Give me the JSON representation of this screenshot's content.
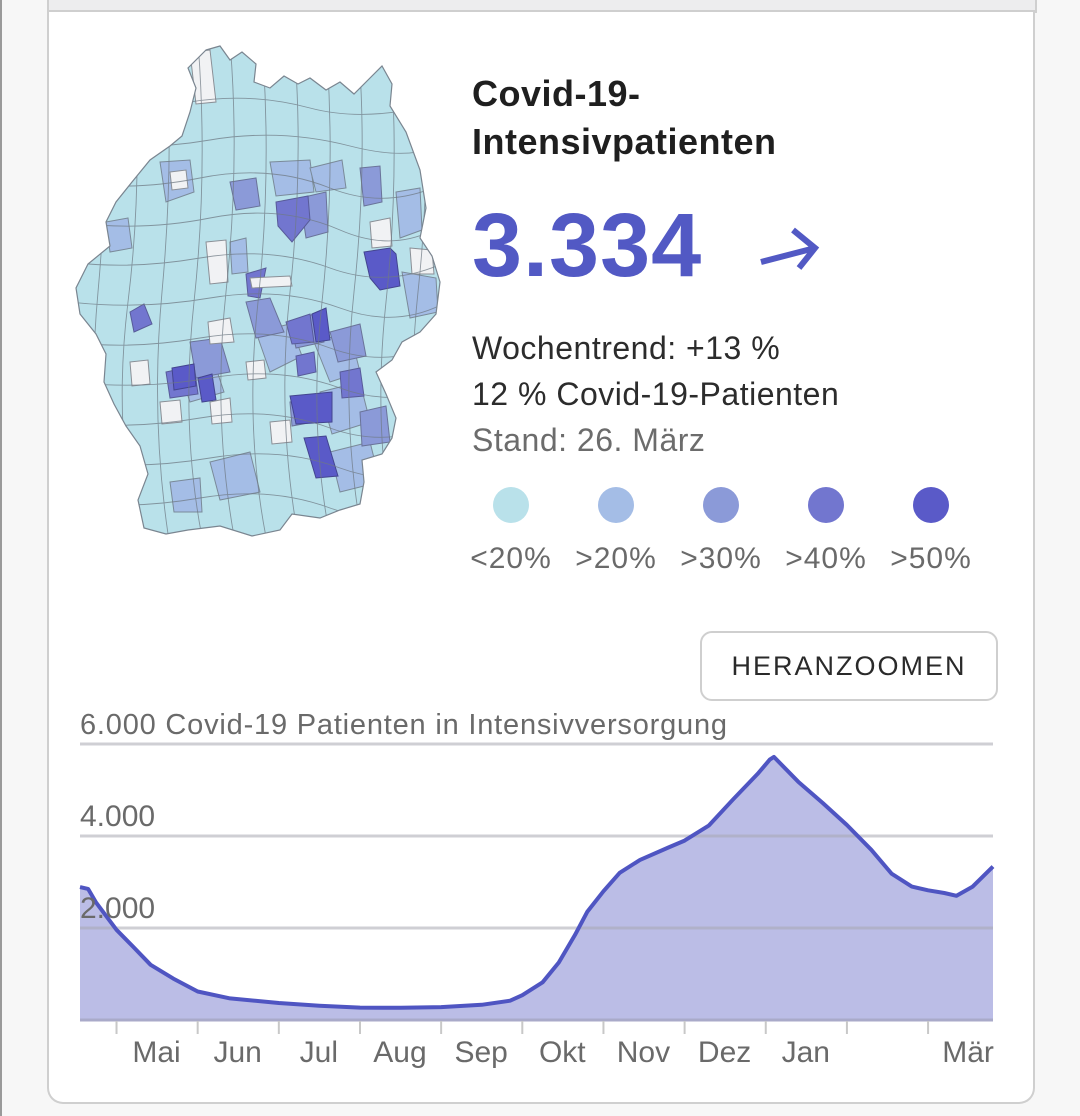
{
  "header": {
    "title": "Covid-19-\nIntensivpatienten",
    "title_line1": "Covid-19-",
    "title_line2": "Intensivpatienten",
    "value": "3.334",
    "trend_icon": "arrow-up-right-icon"
  },
  "stats": {
    "weekly_trend": "Wochentrend: +13 %",
    "share": "12 % Covid-19-Patienten",
    "as_of": "Stand: 26. März"
  },
  "map": {
    "description": "Karte Deutschland nach Landkreisen, Anteil Covid-19-Patienten an Intensivbetten",
    "no_data_color": "#f1f2f4"
  },
  "legend": [
    {
      "label": "<20%",
      "color": "#b9e1ea"
    },
    {
      "label": ">20%",
      "color": "#a4bde6"
    },
    {
      "label": ">30%",
      "color": "#8b9ad8"
    },
    {
      "label": ">40%",
      "color": "#7276cf"
    },
    {
      "label": ">50%",
      "color": "#5a5ac8"
    }
  ],
  "button": {
    "zoom_label": "HERANZOOMEN"
  },
  "colors": {
    "accent": "#5259c4",
    "area_fill": "#bbbde6",
    "line": "#4f55c2",
    "grid": "#cfcfcf"
  },
  "chart_data": {
    "type": "area",
    "title": "Covid-19 Patienten in Intensivversorgung",
    "ylabel": "Covid-19 Patienten in Intensivversorgung",
    "xlabel": "",
    "ylim": [
      0,
      6000
    ],
    "yticks": [
      2000,
      4000,
      6000
    ],
    "ytick_labels": [
      "2.000",
      "4.000",
      "6.000"
    ],
    "grid": true,
    "legend": "none",
    "xtick_labels": [
      "Mai",
      "Jun",
      "Jul",
      "Aug",
      "Sep",
      "Okt",
      "Nov",
      "Dez",
      "Jan",
      "",
      "Mär"
    ],
    "x_range_months": [
      -0.45,
      10.8
    ],
    "series": [
      {
        "name": "Covid-19 Patienten in Intensivversorgung",
        "x": [
          -0.45,
          -0.35,
          -0.25,
          0,
          0.2,
          0.42,
          0.7,
          1,
          1.4,
          2,
          2.5,
          3,
          3.5,
          4,
          4.5,
          4.85,
          5,
          5.25,
          5.45,
          5.65,
          5.8,
          6,
          6.2,
          6.45,
          6.8,
          7,
          7.3,
          7.6,
          7.9,
          8.05,
          8.1,
          8.4,
          8.7,
          9,
          9.3,
          9.55,
          9.8,
          10,
          10.2,
          10.35,
          10.55,
          10.8
        ],
        "values": [
          2890,
          2850,
          2550,
          1960,
          1600,
          1200,
          900,
          620,
          470,
          370,
          310,
          270,
          265,
          280,
          330,
          420,
          540,
          820,
          1250,
          1850,
          2350,
          2800,
          3200,
          3480,
          3750,
          3900,
          4230,
          4800,
          5350,
          5660,
          5720,
          5180,
          4720,
          4240,
          3700,
          3180,
          2900,
          2820,
          2760,
          2700,
          2900,
          3334
        ]
      }
    ]
  }
}
